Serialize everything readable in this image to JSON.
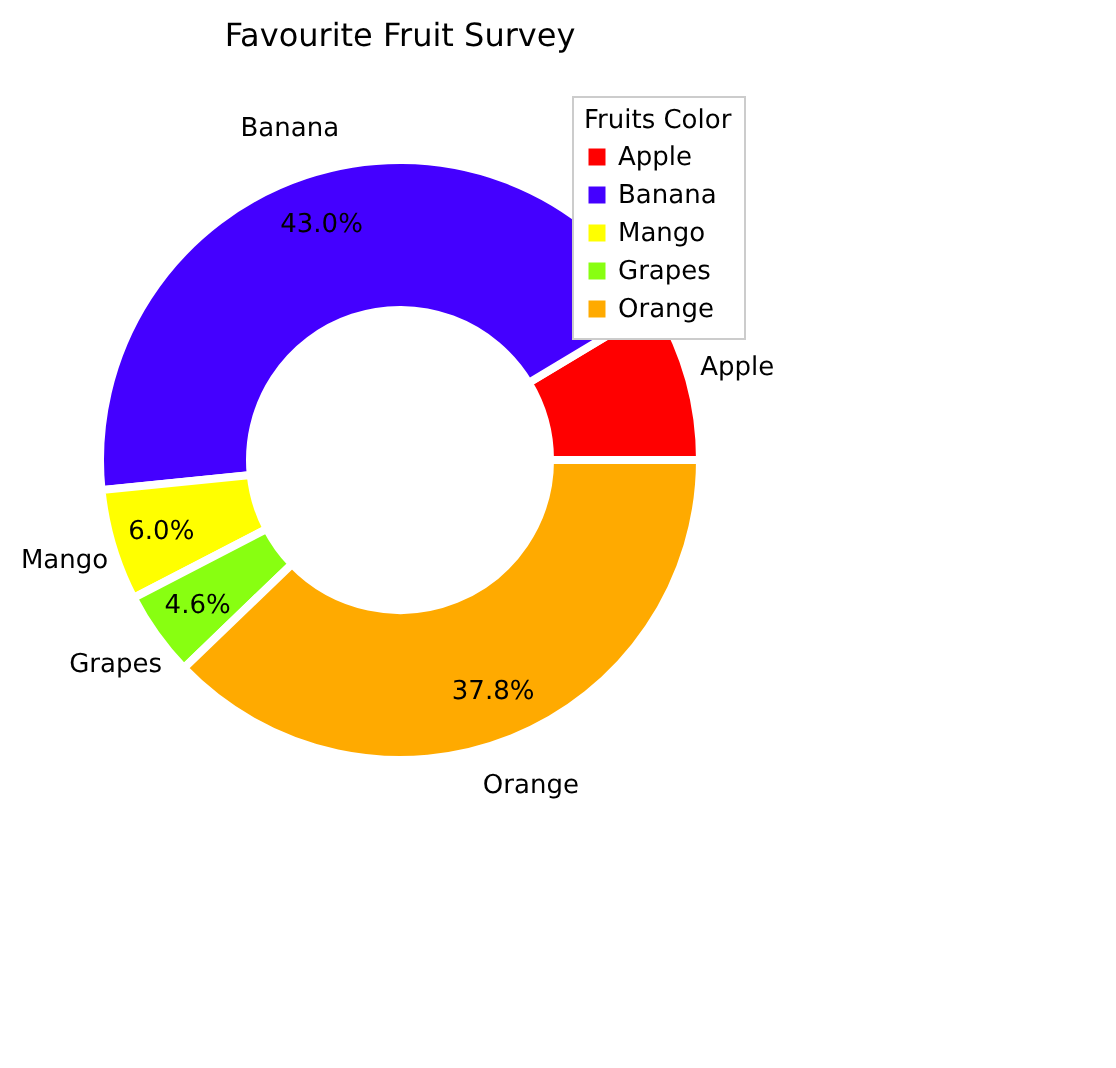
{
  "chart_data": {
    "type": "donut",
    "title": "Favourite Fruit Survey",
    "legend_title": "Fruits Color",
    "categories": [
      "Apple",
      "Banana",
      "Mango",
      "Grapes",
      "Orange"
    ],
    "values": [
      8.6,
      43.0,
      6.0,
      4.6,
      37.8
    ],
    "colors": [
      "#ff0000",
      "#4400ff",
      "#ffff00",
      "#88ff11",
      "#ffaa00"
    ],
    "value_labels": [
      null,
      "43.0%",
      "6.0%",
      "4.6%",
      "37.8%"
    ],
    "legend": "top right"
  }
}
